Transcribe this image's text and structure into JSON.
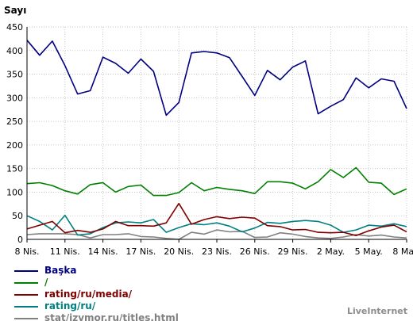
{
  "chart_data": {
    "type": "line",
    "ylabel": "Sayı",
    "ylim": [
      0,
      450
    ],
    "yticks": [
      0,
      50,
      100,
      150,
      200,
      250,
      300,
      350,
      400,
      450
    ],
    "grid": true,
    "x": [
      "8 Nis.",
      "9 Nis.",
      "10 Nis.",
      "11 Nis.",
      "12 Nis.",
      "13 Nis.",
      "14 Nis.",
      "15 Nis.",
      "16 Nis.",
      "17 Nis.",
      "18 Nis.",
      "19 Nis.",
      "20 Nis.",
      "21 Nis.",
      "22 Nis.",
      "23 Nis.",
      "24 Nis.",
      "25 Nis.",
      "26 Nis.",
      "27 Nis.",
      "28 Nis.",
      "29 Nis.",
      "30 Nis.",
      "1 May.",
      "2 May.",
      "3 May.",
      "4 May.",
      "5 May.",
      "6 May.",
      "7 May.",
      "8 May."
    ],
    "xtick_labels": [
      "8 Nis.",
      "11 Nis.",
      "14 Nis.",
      "17 Nis.",
      "20 Nis.",
      "23 Nis.",
      "26 Nis.",
      "29 Nis.",
      "2 May.",
      "5 May.",
      "8 May."
    ],
    "series": [
      {
        "name": "Başka",
        "color": "#000080",
        "values": [
          422,
          390,
          420,
          368,
          308,
          315,
          386,
          373,
          352,
          382,
          356,
          263,
          290,
          395,
          398,
          395,
          385,
          345,
          305,
          358,
          338,
          365,
          378,
          266,
          282,
          296,
          342,
          321,
          340,
          335,
          277
        ]
      },
      {
        "name": "/",
        "color": "#008000",
        "values": [
          118,
          120,
          114,
          103,
          96,
          116,
          120,
          100,
          112,
          115,
          93,
          93,
          99,
          120,
          103,
          110,
          106,
          103,
          97,
          122,
          122,
          119,
          107,
          122,
          148,
          131,
          152,
          121,
          119,
          95,
          107
        ]
      },
      {
        "name": "rating/ru/media/",
        "color": "#800000",
        "values": [
          22,
          30,
          38,
          14,
          19,
          15,
          22,
          38,
          29,
          29,
          28,
          35,
          76,
          32,
          42,
          48,
          44,
          47,
          45,
          29,
          27,
          20,
          21,
          15,
          14,
          15,
          8,
          18,
          26,
          30,
          16
        ]
      },
      {
        "name": "rating/ru/",
        "color": "#008080",
        "values": [
          50,
          38,
          20,
          51,
          9,
          12,
          25,
          35,
          37,
          35,
          42,
          15,
          25,
          33,
          31,
          35,
          28,
          16,
          24,
          36,
          34,
          38,
          40,
          38,
          30,
          15,
          20,
          30,
          28,
          33,
          27
        ]
      },
      {
        "name": "stat/izvmor.ru/titles.html",
        "color": "#808080",
        "values": [
          10,
          12,
          12,
          12,
          10,
          3,
          10,
          10,
          12,
          6,
          5,
          2,
          0,
          15,
          11,
          20,
          16,
          17,
          4,
          5,
          14,
          11,
          6,
          3,
          2,
          5,
          10,
          7,
          9,
          5,
          3
        ]
      }
    ]
  },
  "brand": "LiveInternet"
}
